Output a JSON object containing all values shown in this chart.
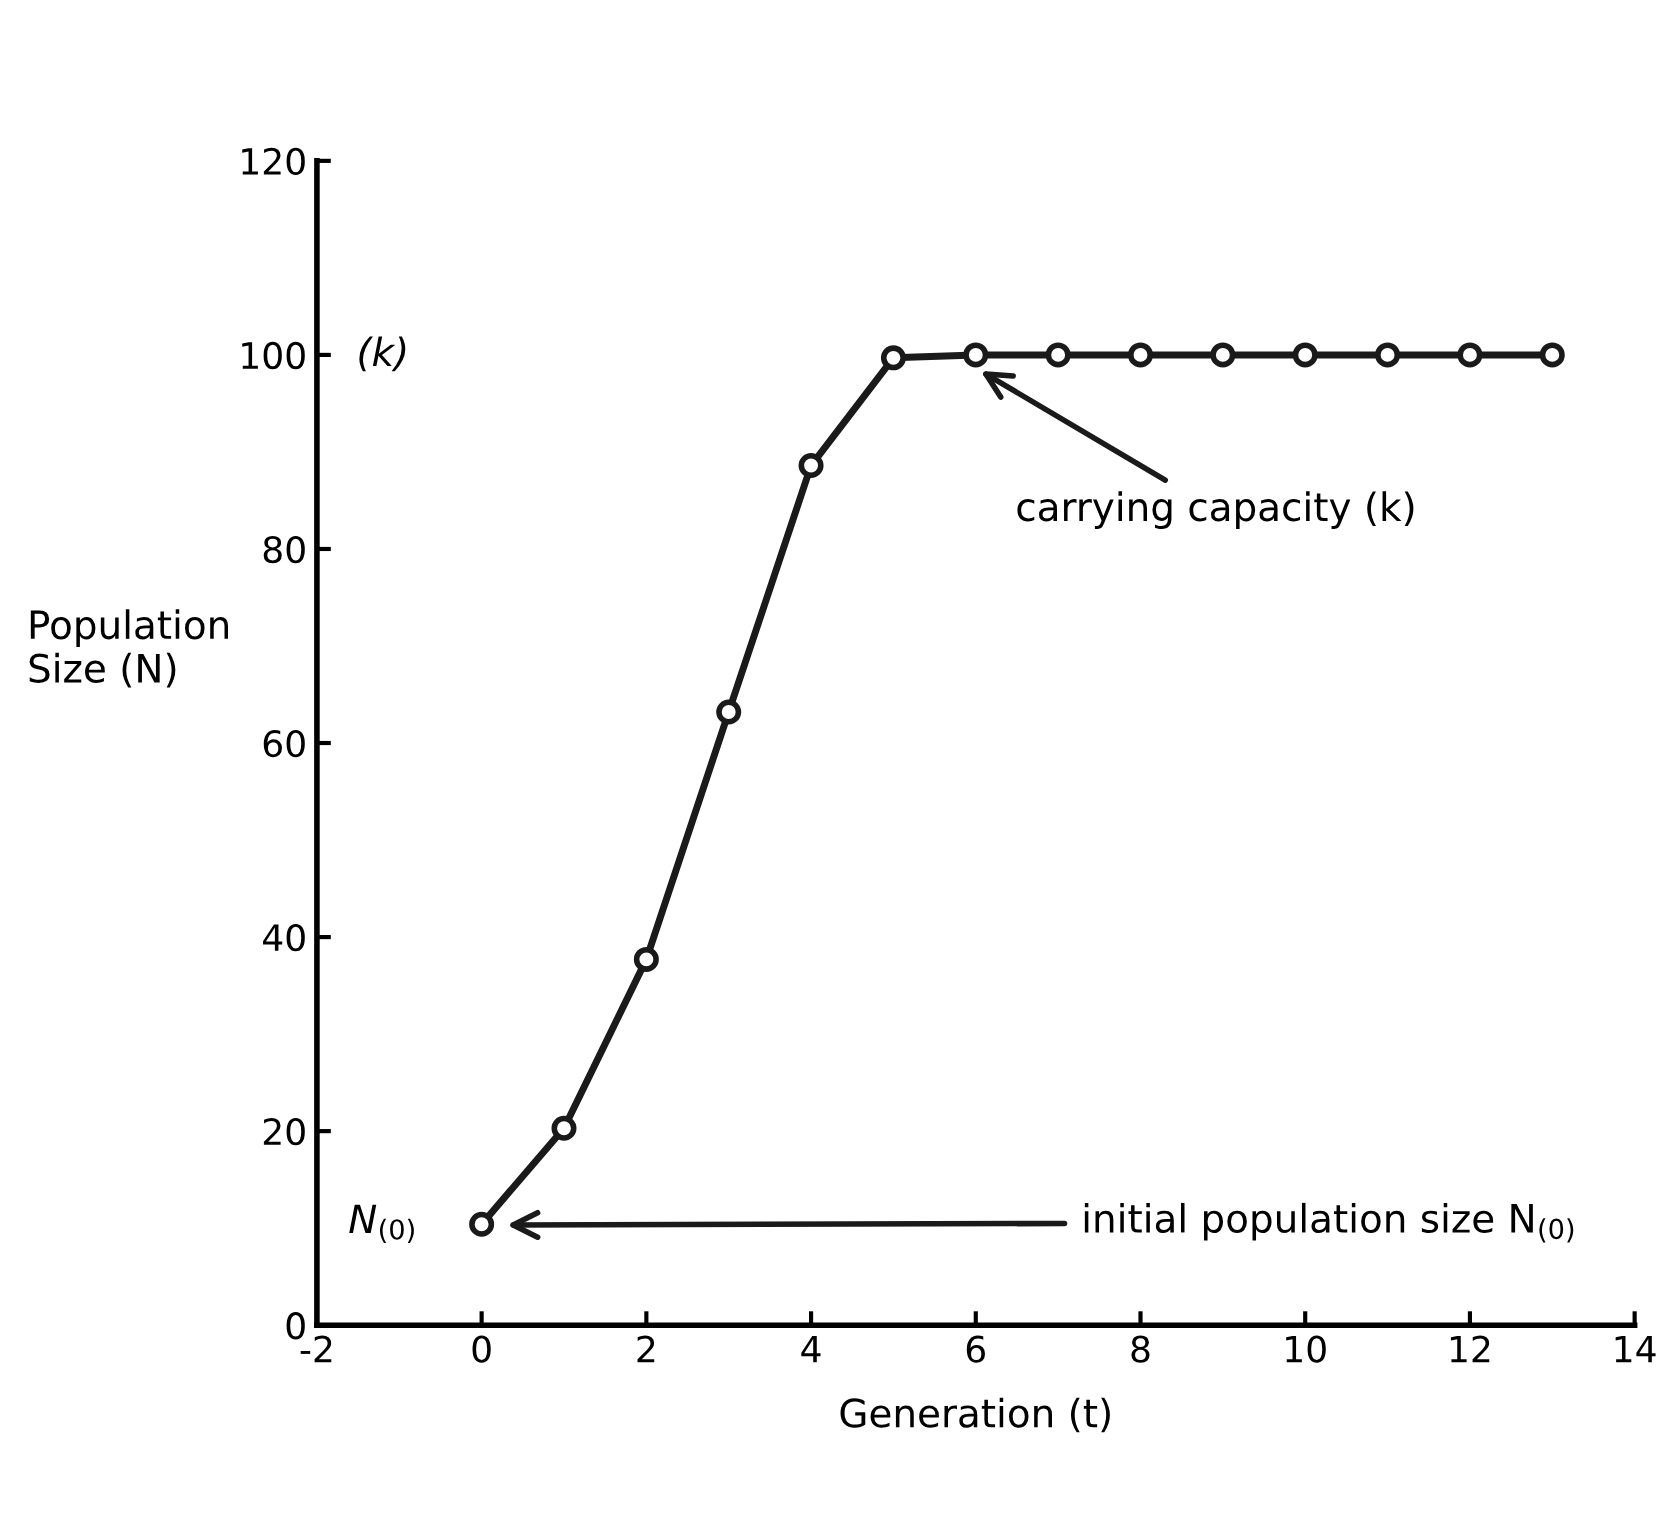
{
  "chart_data": {
    "type": "line",
    "xlabel": "Generation (t)",
    "ylabel": "Population\nSize (N)",
    "x": [
      0,
      1,
      2,
      3,
      4,
      5,
      6,
      7,
      8,
      9,
      10,
      11,
      12,
      13
    ],
    "series": [
      {
        "color": "#1a1a1a",
        "values": [
          10.4,
          20.3,
          37.7,
          63.2,
          88.6,
          99.7,
          100,
          100,
          100,
          100,
          100,
          100,
          100,
          100
        ]
      }
    ],
    "xlim": [
      -2,
      14
    ],
    "xticks": [
      -2,
      0,
      2,
      4,
      6,
      8,
      10,
      12,
      14
    ],
    "ylim": [
      0,
      120
    ],
    "yticks": [
      0,
      20,
      40,
      60,
      80,
      100,
      120
    ],
    "marker": "circle",
    "line_style": "solid",
    "grid": false,
    "legend": false,
    "annotations": [
      "(k)",
      "N$_{(0)}$",
      "carrying capacity (k)",
      "initial population size N$_{(0)}$"
    ]
  }
}
